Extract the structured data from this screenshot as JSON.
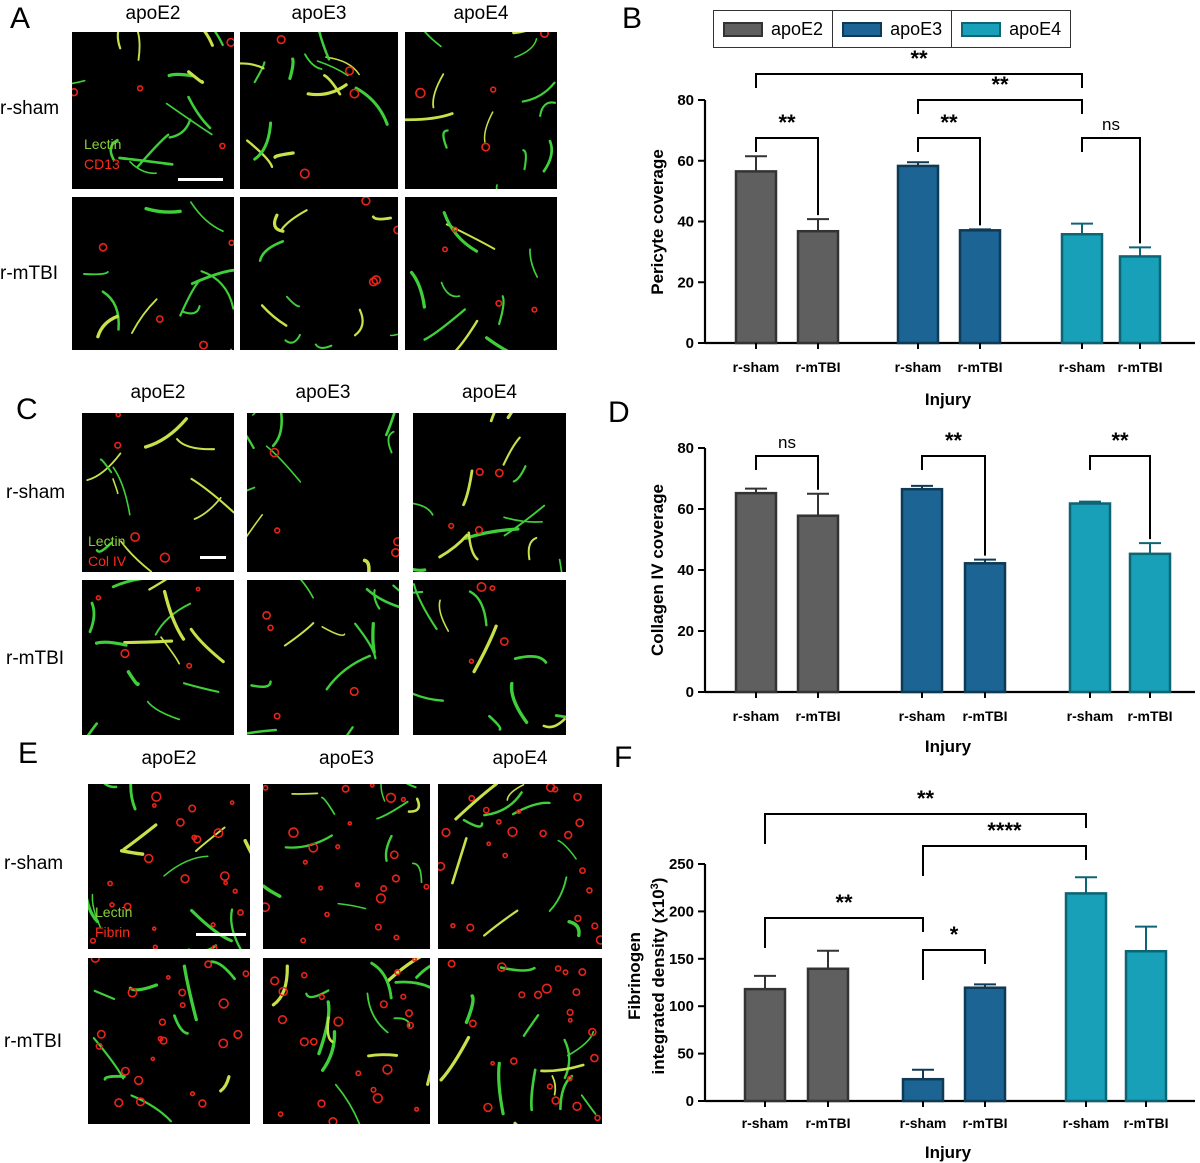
{
  "panel_letters": {
    "A": "A",
    "B": "B",
    "C": "C",
    "D": "D",
    "E": "E",
    "F": "F"
  },
  "micrographs": {
    "columns": [
      "apoE2",
      "apoE3",
      "apoE4"
    ],
    "rows": [
      "r-sham",
      "r-mTBI"
    ],
    "A": {
      "stain1": "Lectin",
      "stain2": "CD13",
      "stain1_color": "#86d13a",
      "stain2_color": "#ff2a1a"
    },
    "C": {
      "stain1": "Lectin",
      "stain2": "Col IV",
      "stain1_color": "#86d13a",
      "stain2_color": "#ff2a1a"
    },
    "E": {
      "stain1": "Lectin",
      "stain2": "Fibrin",
      "stain1_color": "#86d13a",
      "stain2_color": "#ff2a1a"
    }
  },
  "legend": {
    "items": [
      {
        "label": "apoE2",
        "fill": "#5f5f5f",
        "stroke": "#333333"
      },
      {
        "label": "apoE3",
        "fill": "#1b6493",
        "stroke": "#0f3a55"
      },
      {
        "label": "apoE4",
        "fill": "#17a0b7",
        "stroke": "#0d6574"
      }
    ]
  },
  "chart_data": [
    {
      "panel": "B",
      "type": "bar",
      "ylabel": "Pericyte coverage",
      "xlabel": "Injury",
      "ylim": [
        0,
        80
      ],
      "yticks": [
        0,
        20,
        40,
        60,
        80
      ],
      "categories": [
        "r-sham",
        "r-mTBI",
        "r-sham",
        "r-mTBI",
        "r-sham",
        "r-mTBI"
      ],
      "groups": [
        "apoE2",
        "apoE2",
        "apoE3",
        "apoE3",
        "apoE4",
        "apoE4"
      ],
      "values": [
        56.5,
        36.8,
        58.3,
        37.1,
        35.8,
        28.5
      ],
      "errors": [
        5,
        4,
        1.2,
        0.3,
        3.5,
        3
      ],
      "significance": [
        {
          "from": 0,
          "to": 1,
          "label": "**"
        },
        {
          "from": 2,
          "to": 3,
          "label": "**"
        },
        {
          "from": 4,
          "to": 5,
          "label": "ns"
        },
        {
          "from": 2,
          "to": 4,
          "label": "**"
        },
        {
          "from": 0,
          "to": 4,
          "label": "**"
        }
      ]
    },
    {
      "panel": "D",
      "type": "bar",
      "ylabel": "Collagen IV coverage",
      "xlabel": "Injury",
      "ylim": [
        0,
        80
      ],
      "yticks": [
        0,
        20,
        40,
        60,
        80
      ],
      "categories": [
        "r-sham",
        "r-mTBI",
        "r-sham",
        "r-mTBI",
        "r-sham",
        "r-mTBI"
      ],
      "groups": [
        "apoE2",
        "apoE2",
        "apoE3",
        "apoE3",
        "apoE4",
        "apoE4"
      ],
      "values": [
        65.2,
        57.8,
        66.5,
        42.2,
        61.8,
        45.3
      ],
      "errors": [
        1.5,
        7.2,
        1.1,
        1.2,
        0.6,
        3.5
      ],
      "significance": [
        {
          "from": 0,
          "to": 1,
          "label": "ns"
        },
        {
          "from": 2,
          "to": 3,
          "label": "**"
        },
        {
          "from": 4,
          "to": 5,
          "label": "**"
        }
      ]
    },
    {
      "panel": "F",
      "type": "bar",
      "ylabel_line1": "Fibrinogen",
      "ylabel_line2": "integrated density (x10",
      "ylabel_sup": "3",
      "ylabel_close": ")",
      "xlabel": "Injury",
      "ylim": [
        0,
        250
      ],
      "yticks": [
        0,
        50,
        100,
        150,
        200,
        250
      ],
      "categories": [
        "r-sham",
        "r-mTBI",
        "r-sham",
        "r-mTBI",
        "r-sham",
        "r-mTBI"
      ],
      "groups": [
        "apoE2",
        "apoE2",
        "apoE3",
        "apoE3",
        "apoE4",
        "apoE4"
      ],
      "values": [
        118,
        139.5,
        23,
        119.5,
        219,
        158
      ],
      "errors": [
        14,
        19,
        10,
        3.5,
        17,
        26
      ],
      "significance": [
        {
          "from": 2,
          "to": 3,
          "label": "*"
        },
        {
          "from": 0,
          "to": 2,
          "label": "**"
        },
        {
          "from": 2,
          "to": 4,
          "label": "****"
        },
        {
          "from": 0,
          "to": 4,
          "label": "**"
        }
      ]
    }
  ]
}
